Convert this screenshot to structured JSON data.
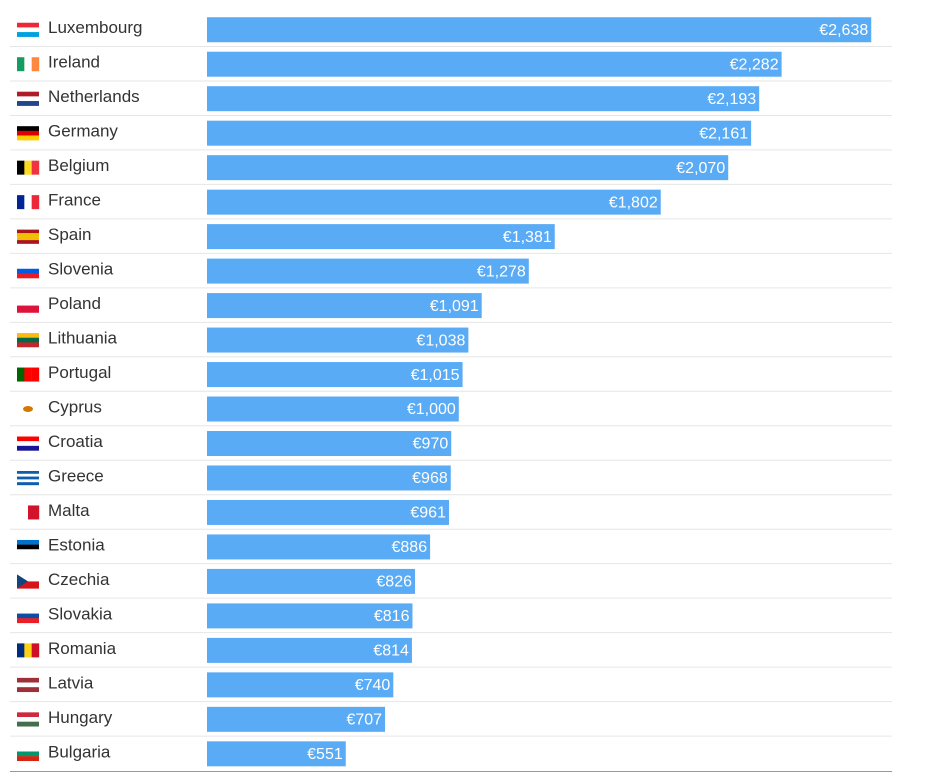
{
  "chart_data": {
    "type": "bar",
    "orientation": "horizontal",
    "color": "#5aabf5",
    "categories": [
      "Luxembourg",
      "Ireland",
      "Netherlands",
      "Germany",
      "Belgium",
      "France",
      "Spain",
      "Slovenia",
      "Poland",
      "Lithuania",
      "Portugal",
      "Cyprus",
      "Croatia",
      "Greece",
      "Malta",
      "Estonia",
      "Czechia",
      "Slovakia",
      "Romania",
      "Latvia",
      "Hungary",
      "Bulgaria"
    ],
    "values": [
      2638,
      2282,
      2193,
      2161,
      2070,
      1802,
      1381,
      1278,
      1091,
      1038,
      1015,
      1000,
      970,
      968,
      961,
      886,
      826,
      816,
      814,
      740,
      707,
      551
    ],
    "value_labels": [
      "€2,638",
      "€2,282",
      "€2,193",
      "€2,161",
      "€2,070",
      "€1,802",
      "€1,381",
      "€1,278",
      "€1,091",
      "€1,038",
      "€1,015",
      "€1,000",
      "€970",
      "€968",
      "€961",
      "€886",
      "€826",
      "€816",
      "€814",
      "€740",
      "€707",
      "€551"
    ]
  }
}
